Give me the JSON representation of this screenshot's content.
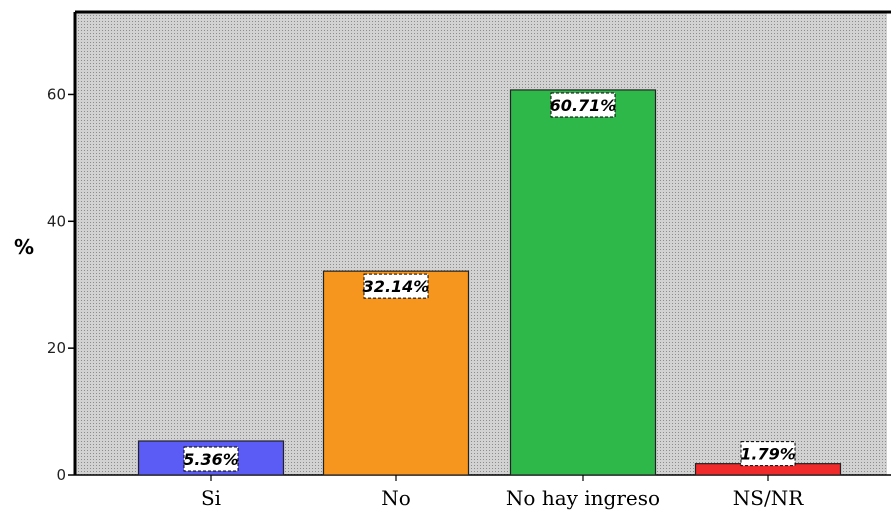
{
  "chart_data": {
    "type": "bar",
    "categories": [
      "Si",
      "No",
      "No hay ingreso",
      "NS/NR"
    ],
    "values": [
      5.36,
      32.14,
      60.71,
      1.79
    ],
    "data_labels": [
      "5.36%",
      "32.14%",
      "60.71%",
      "1.79%"
    ],
    "colors": [
      "#5b5bf5",
      "#f6961e",
      "#2fb84a",
      "#f02a2a"
    ],
    "ylabel": "%",
    "ylim": [
      0,
      73
    ],
    "yticks": [
      0,
      20,
      40,
      60
    ],
    "grid": false,
    "plot_background": "dotted-gray"
  }
}
